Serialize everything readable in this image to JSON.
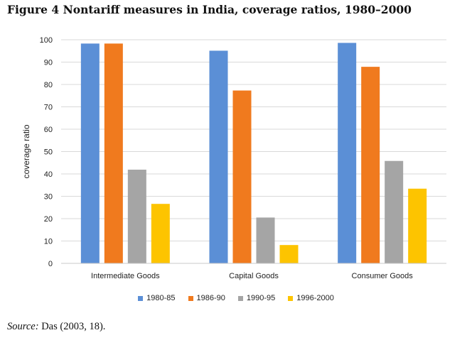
{
  "figure": {
    "title": "Figure 4 Nontariff measures in India, coverage ratios, 1980–2000",
    "source_label": "Source:",
    "source_text": "Das (2003, 18)."
  },
  "chart_data": {
    "type": "bar",
    "title": "",
    "xlabel": "",
    "ylabel": "coverage ratio",
    "ylim": [
      0,
      100
    ],
    "yticks": [
      0,
      10,
      20,
      30,
      40,
      50,
      60,
      70,
      80,
      90,
      100
    ],
    "grid": true,
    "legend_position": "bottom",
    "categories": [
      "Intermediate Goods",
      "Capital Goods",
      "Consumer Goods"
    ],
    "series": [
      {
        "name": "1980-85",
        "color": "#5B8FD6",
        "values": [
          98.3,
          95.1,
          98.6
        ]
      },
      {
        "name": "1986-90",
        "color": "#F07A1E",
        "values": [
          98.3,
          77.3,
          87.9
        ]
      },
      {
        "name": "1990-95",
        "color": "#A5A5A5",
        "values": [
          41.9,
          20.5,
          45.8
        ]
      },
      {
        "name": "1996-2000",
        "color": "#FDC400",
        "values": [
          26.6,
          8.2,
          33.4
        ]
      }
    ]
  }
}
